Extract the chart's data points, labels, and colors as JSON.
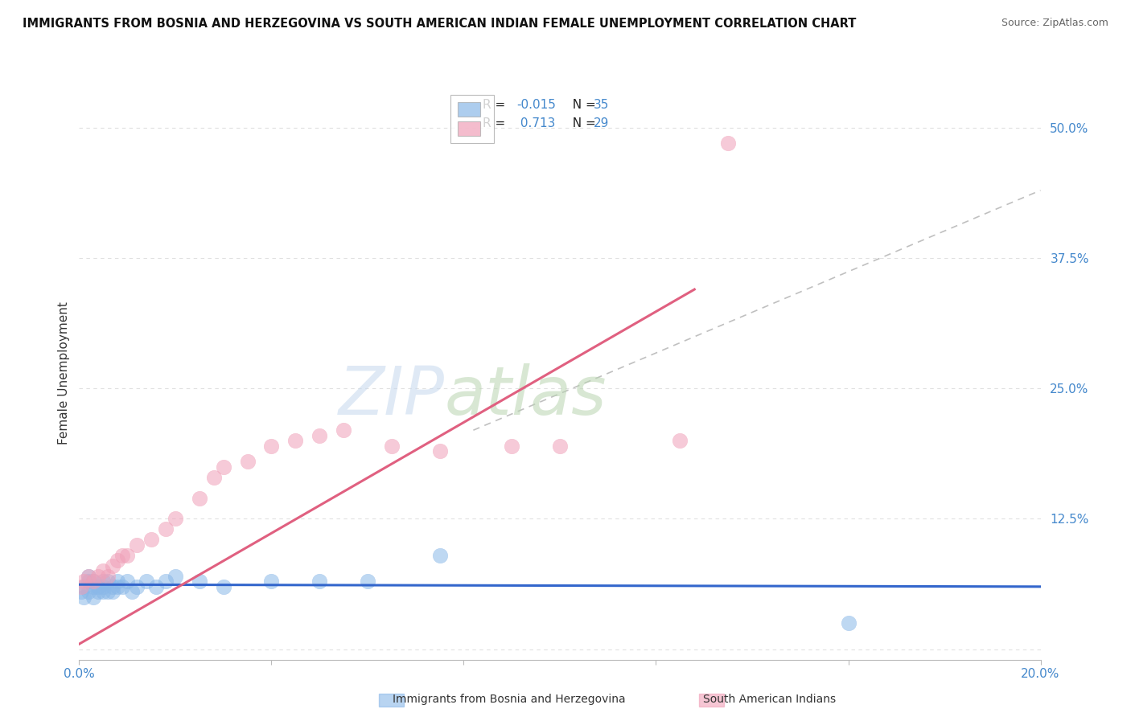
{
  "title": "IMMIGRANTS FROM BOSNIA AND HERZEGOVINA VS SOUTH AMERICAN INDIAN FEMALE UNEMPLOYMENT CORRELATION CHART",
  "source_text": "Source: ZipAtlas.com",
  "ylabel": "Female Unemployment",
  "xlim": [
    0.0,
    0.2
  ],
  "ylim": [
    -0.01,
    0.54
  ],
  "ytick_values": [
    0.0,
    0.125,
    0.25,
    0.375,
    0.5
  ],
  "ytick_labels": [
    "",
    "12.5%",
    "25.0%",
    "37.5%",
    "50.0%"
  ],
  "xtick_values": [
    0.0,
    0.04,
    0.08,
    0.12,
    0.16,
    0.2
  ],
  "xtick_labels": [
    "0.0%",
    "",
    "",
    "",
    "",
    "20.0%"
  ],
  "blue_scatter_x": [
    0.0005,
    0.001,
    0.001,
    0.002,
    0.002,
    0.002,
    0.003,
    0.003,
    0.003,
    0.004,
    0.004,
    0.005,
    0.005,
    0.005,
    0.006,
    0.006,
    0.007,
    0.007,
    0.008,
    0.008,
    0.009,
    0.01,
    0.011,
    0.012,
    0.014,
    0.016,
    0.018,
    0.02,
    0.025,
    0.03,
    0.04,
    0.05,
    0.06,
    0.075,
    0.16
  ],
  "blue_scatter_y": [
    0.055,
    0.06,
    0.05,
    0.065,
    0.055,
    0.07,
    0.06,
    0.05,
    0.065,
    0.055,
    0.06,
    0.065,
    0.055,
    0.06,
    0.055,
    0.065,
    0.06,
    0.055,
    0.06,
    0.065,
    0.06,
    0.065,
    0.055,
    0.06,
    0.065,
    0.06,
    0.065,
    0.07,
    0.065,
    0.06,
    0.065,
    0.065,
    0.065,
    0.09,
    0.025
  ],
  "pink_scatter_x": [
    0.0005,
    0.001,
    0.002,
    0.003,
    0.004,
    0.005,
    0.006,
    0.007,
    0.008,
    0.009,
    0.01,
    0.012,
    0.015,
    0.018,
    0.02,
    0.025,
    0.028,
    0.03,
    0.035,
    0.04,
    0.045,
    0.05,
    0.055,
    0.065,
    0.075,
    0.09,
    0.1,
    0.125,
    0.135
  ],
  "pink_scatter_y": [
    0.06,
    0.065,
    0.07,
    0.065,
    0.07,
    0.075,
    0.07,
    0.08,
    0.085,
    0.09,
    0.09,
    0.1,
    0.105,
    0.115,
    0.125,
    0.145,
    0.165,
    0.175,
    0.18,
    0.195,
    0.2,
    0.205,
    0.21,
    0.195,
    0.19,
    0.195,
    0.195,
    0.2,
    0.485
  ],
  "blue_line_x": [
    0.0,
    0.2
  ],
  "blue_line_y": [
    0.062,
    0.06
  ],
  "pink_line_x": [
    0.0,
    0.128
  ],
  "pink_line_y": [
    0.005,
    0.345
  ],
  "gray_line_x": [
    0.082,
    0.2
  ],
  "gray_line_y": [
    0.21,
    0.44
  ],
  "watermark_zip": "ZIP",
  "watermark_atlas": "atlas",
  "bg_color": "#ffffff",
  "blue_color": "#8ab8e8",
  "pink_color": "#f0a0b8",
  "blue_line_color": "#3366cc",
  "pink_line_color": "#e06080",
  "gray_line_color": "#c0c0c0",
  "grid_color": "#e0e0e0",
  "axis_color": "#4488cc",
  "legend_r_color": "#4488cc",
  "legend_n_color": "#222222"
}
